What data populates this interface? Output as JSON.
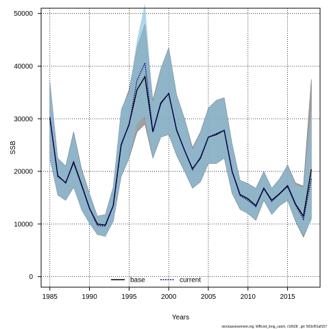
{
  "chart_data": {
    "type": "line",
    "xlabel": "Years",
    "ylabel": "SSB",
    "xlim": [
      1983.9,
      2019.1
    ],
    "ylim": [
      -2000,
      51000
    ],
    "x_ticks": [
      1985,
      1990,
      1995,
      2000,
      2005,
      2010,
      2015
    ],
    "y_ticks": [
      0,
      10000,
      20000,
      30000,
      40000,
      50000
    ],
    "grid": true,
    "legend_position": "bottom-center",
    "footer": "stockassessment.org, WBcod_long_catch, r10628 , git: 503cf91af157",
    "x": [
      1985,
      1986,
      1987,
      1988,
      1989,
      1990,
      1991,
      1992,
      1993,
      1994,
      1995,
      1996,
      1997,
      1998,
      1999,
      2000,
      2001,
      2002,
      2003,
      2004,
      2005,
      2006,
      2007,
      2008,
      2009,
      2010,
      2011,
      2012,
      2013,
      2014,
      2015,
      2016,
      2017,
      2018
    ],
    "series": [
      {
        "name": "base",
        "color": "#000000",
        "style": "solid",
        "band_color": "#808080",
        "values": [
          30200,
          19200,
          17800,
          21800,
          17500,
          13000,
          10000,
          9800,
          13500,
          25000,
          29000,
          35500,
          38000,
          27500,
          33000,
          34800,
          27800,
          24000,
          20500,
          22500,
          26500,
          27000,
          27800,
          20000,
          15600,
          14800,
          13500,
          16800,
          14500,
          15800,
          17300,
          13800,
          11500,
          20400
        ],
        "lower": [
          22500,
          15500,
          14500,
          17000,
          12800,
          10200,
          8000,
          7700,
          10500,
          19000,
          22500,
          27500,
          29000,
          22500,
          26500,
          27000,
          23000,
          20000,
          16800,
          18000,
          21500,
          21500,
          22500,
          15800,
          12800,
          12000,
          10700,
          14500,
          11800,
          13500,
          14500,
          10500,
          7500,
          11000
        ],
        "upper": [
          37000,
          22500,
          21000,
          27500,
          20500,
          15800,
          11500,
          11800,
          17000,
          31500,
          35500,
          43500,
          48000,
          33500,
          39500,
          43500,
          34500,
          30000,
          24500,
          27500,
          32000,
          33500,
          34000,
          25200,
          18300,
          17700,
          16800,
          20000,
          16800,
          18600,
          21200,
          17800,
          17200,
          37500
        ]
      },
      {
        "name": "current",
        "color": "#00008b",
        "style": "dotted",
        "band_color": "#87bfdd",
        "values": [
          30300,
          19000,
          17900,
          21600,
          17300,
          13000,
          9700,
          9600,
          13500,
          25200,
          28800,
          37300,
          40600,
          27500,
          32800,
          34800,
          27900,
          24000,
          20300,
          22700,
          26500,
          27200,
          27800,
          20000,
          15400,
          14500,
          13300,
          16700,
          14300,
          15700,
          17100,
          13600,
          10900,
          18600
        ],
        "lower": [
          22000,
          15500,
          14500,
          17000,
          12500,
          10000,
          8000,
          7500,
          10500,
          19000,
          22500,
          29000,
          30500,
          22500,
          26500,
          27000,
          23000,
          20000,
          16800,
          18000,
          21500,
          21500,
          22500,
          15800,
          12800,
          12000,
          10700,
          14500,
          11800,
          13500,
          14500,
          10500,
          7800,
          10700
        ],
        "upper": [
          38000,
          22500,
          21000,
          27300,
          20300,
          15800,
          11500,
          11800,
          17000,
          32000,
          35000,
          45000,
          52000,
          33000,
          39500,
          43500,
          34500,
          30000,
          24200,
          27500,
          32000,
          33500,
          34000,
          25200,
          18300,
          17700,
          16800,
          20000,
          16800,
          18600,
          21200,
          17400,
          17000,
          31500
        ]
      }
    ]
  }
}
